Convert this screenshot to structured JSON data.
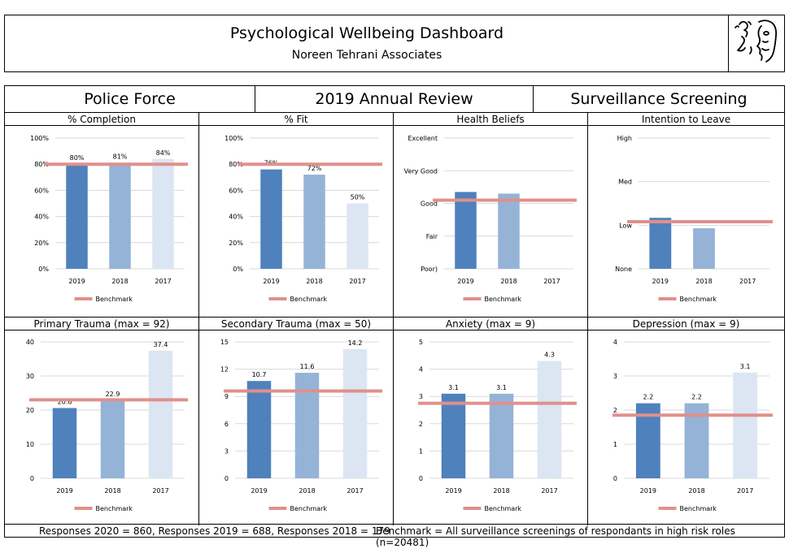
{
  "header": {
    "title": "Psychological Wellbeing Dashboard",
    "subtitle": "Noreen Tehrani Associates"
  },
  "banner": {
    "left": "Police Force",
    "center": "2019 Annual Review",
    "right": "Surveillance Screening"
  },
  "colors": {
    "bar2019": "#4f81bd",
    "bar2018": "#95b3d7",
    "bar2017": "#dce6f2",
    "benchmark": "#e0908c",
    "grid": "#d9d9d9"
  },
  "footer": {
    "left": "Responses 2020 = 860, Responses 2019 = 688, Responses 2018 = 179",
    "right": "Benchmark = All surveillance screenings of respondants in high risk roles (n=20481)"
  },
  "chart_data": [
    {
      "type": "bar",
      "title": "% Completion",
      "categories": [
        "2019",
        "2018",
        "2017"
      ],
      "values": [
        80,
        81,
        84
      ],
      "data_labels": [
        "80%",
        "81%",
        "84%"
      ],
      "benchmark": 80,
      "ylim": [
        0,
        100
      ],
      "yticks": [
        0,
        20,
        40,
        60,
        80,
        100
      ],
      "ytick_labels": [
        "0%",
        "20%",
        "40%",
        "60%",
        "80%",
        "100%"
      ],
      "legend": "Benchmark"
    },
    {
      "type": "bar",
      "title": "% Fit",
      "categories": [
        "2019",
        "2018",
        "2017"
      ],
      "values": [
        76,
        72,
        50
      ],
      "data_labels": [
        "76%",
        "72%",
        "50%"
      ],
      "benchmark": 80,
      "ylim": [
        0,
        100
      ],
      "yticks": [
        0,
        20,
        40,
        60,
        80,
        100
      ],
      "ytick_labels": [
        "0%",
        "20%",
        "40%",
        "60%",
        "80%",
        "100%"
      ],
      "legend": "Benchmark"
    },
    {
      "type": "bar",
      "title": "Health Beliefs",
      "categories": [
        "2019",
        "2018",
        "2017"
      ],
      "values": [
        2.35,
        2.3,
        null
      ],
      "data_labels": [],
      "benchmark": 2.1,
      "ylim": [
        0,
        4
      ],
      "yticks": [
        0,
        1,
        2,
        3,
        4
      ],
      "ytick_labels": [
        "Poor)",
        "Fair",
        "Good",
        "Very Good",
        "Excellent"
      ],
      "legend": "Benchmark"
    },
    {
      "type": "bar",
      "title": "Intention to Leave",
      "categories": [
        "2019",
        "2018",
        "2017"
      ],
      "values": [
        1.17,
        0.93,
        null
      ],
      "data_labels": [],
      "benchmark": 1.08,
      "ylim": [
        0,
        3
      ],
      "yticks": [
        0,
        1,
        2,
        3
      ],
      "ytick_labels": [
        "None",
        "Low",
        "Med",
        "High"
      ],
      "legend": "Benchmark"
    },
    {
      "type": "bar",
      "title": "Primary Trauma (max = 92)",
      "categories": [
        "2019",
        "2018",
        "2017"
      ],
      "values": [
        20.6,
        22.9,
        37.4
      ],
      "data_labels": [
        "20.6",
        "22.9",
        "37.4"
      ],
      "benchmark": 23,
      "ylim": [
        0,
        40
      ],
      "yticks": [
        0,
        10,
        20,
        30,
        40
      ],
      "ytick_labels": [
        "0",
        "10",
        "20",
        "30",
        "40"
      ],
      "legend": "Benchmark"
    },
    {
      "type": "bar",
      "title": "Secondary Trauma (max = 50)",
      "categories": [
        "2019",
        "2018",
        "2017"
      ],
      "values": [
        10.7,
        11.6,
        14.2
      ],
      "data_labels": [
        "10.7",
        "11.6",
        "14.2"
      ],
      "benchmark": 9.6,
      "ylim": [
        0,
        15
      ],
      "yticks": [
        0,
        3,
        6,
        9,
        12,
        15
      ],
      "ytick_labels": [
        "0",
        "3",
        "6",
        "9",
        "12",
        "15"
      ],
      "legend": "Benchmark"
    },
    {
      "type": "bar",
      "title": "Anxiety (max = 9)",
      "categories": [
        "2019",
        "2018",
        "2017"
      ],
      "values": [
        3.1,
        3.1,
        4.3
      ],
      "data_labels": [
        "3.1",
        "3.1",
        "4.3"
      ],
      "benchmark": 2.75,
      "ylim": [
        0,
        5
      ],
      "yticks": [
        0,
        1,
        2,
        3,
        4,
        5
      ],
      "ytick_labels": [
        "0",
        "1",
        "2",
        "3",
        "4",
        "5"
      ],
      "legend": "Benchmark"
    },
    {
      "type": "bar",
      "title": "Depression (max = 9)",
      "categories": [
        "2019",
        "2018",
        "2017"
      ],
      "values": [
        2.2,
        2.2,
        3.1
      ],
      "data_labels": [
        "2.2",
        "2.2",
        "3.1"
      ],
      "benchmark": 1.85,
      "ylim": [
        0,
        4
      ],
      "yticks": [
        0,
        1,
        2,
        3,
        4
      ],
      "ytick_labels": [
        "0",
        "1",
        "2",
        "3",
        "4"
      ],
      "legend": "Benchmark"
    }
  ]
}
